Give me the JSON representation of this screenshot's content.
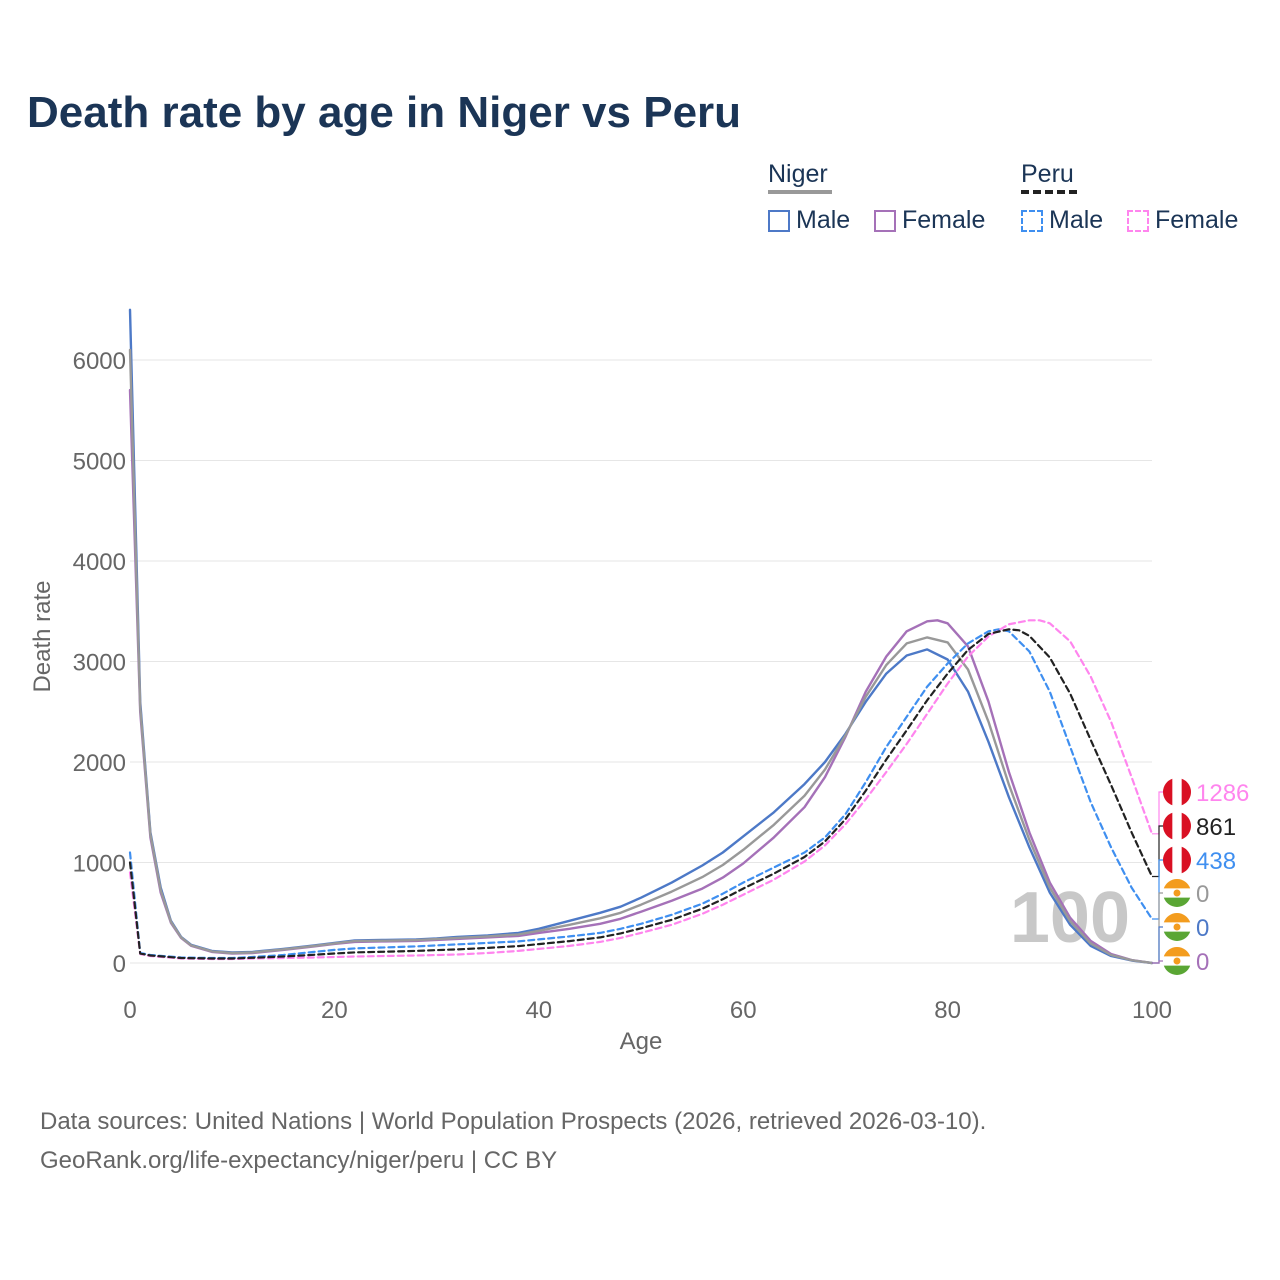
{
  "title": "Death rate by age in Niger vs Peru",
  "legend": {
    "niger": {
      "label": "Niger",
      "male": "Male",
      "female": "Female"
    },
    "peru": {
      "label": "Peru",
      "male": "Male",
      "female": "Female"
    }
  },
  "colors": {
    "title": "#1b3556",
    "niger_male": "#4d79c7",
    "niger_female": "#a571b8",
    "niger_total": "#999999",
    "peru_male": "#3f8ff0",
    "peru_female": "#ff85ee",
    "peru_total": "#222222",
    "grid": "#e6e6e6",
    "axis_text": "#666666"
  },
  "chart_data": {
    "type": "line",
    "title": "Death rate by age in Niger vs Peru",
    "xlabel": "Age",
    "ylabel": "Death rate",
    "xlim": [
      0,
      100
    ],
    "ylim": [
      0,
      6500
    ],
    "x_ticks": [
      0,
      20,
      40,
      60,
      80,
      100
    ],
    "y_ticks": [
      0,
      1000,
      2000,
      3000,
      4000,
      5000,
      6000
    ],
    "grid": true,
    "year_label": "100",
    "series": [
      {
        "name": "Niger Male",
        "color": "#4d79c7",
        "dash": false,
        "points": [
          [
            0,
            6500
          ],
          [
            1,
            2600
          ],
          [
            2,
            1300
          ],
          [
            3,
            750
          ],
          [
            4,
            420
          ],
          [
            5,
            260
          ],
          [
            6,
            180
          ],
          [
            8,
            120
          ],
          [
            10,
            105
          ],
          [
            12,
            110
          ],
          [
            15,
            140
          ],
          [
            18,
            175
          ],
          [
            20,
            200
          ],
          [
            22,
            225
          ],
          [
            25,
            230
          ],
          [
            28,
            235
          ],
          [
            30,
            245
          ],
          [
            32,
            260
          ],
          [
            35,
            275
          ],
          [
            38,
            300
          ],
          [
            40,
            340
          ],
          [
            43,
            420
          ],
          [
            46,
            500
          ],
          [
            48,
            560
          ],
          [
            50,
            650
          ],
          [
            53,
            800
          ],
          [
            56,
            970
          ],
          [
            58,
            1100
          ],
          [
            60,
            1260
          ],
          [
            63,
            1500
          ],
          [
            66,
            1780
          ],
          [
            68,
            2000
          ],
          [
            70,
            2280
          ],
          [
            72,
            2600
          ],
          [
            74,
            2880
          ],
          [
            76,
            3060
          ],
          [
            78,
            3120
          ],
          [
            80,
            3020
          ],
          [
            82,
            2700
          ],
          [
            84,
            2200
          ],
          [
            86,
            1650
          ],
          [
            88,
            1150
          ],
          [
            90,
            700
          ],
          [
            92,
            380
          ],
          [
            94,
            170
          ],
          [
            96,
            70
          ],
          [
            98,
            25
          ],
          [
            100,
            0
          ]
        ]
      },
      {
        "name": "Niger Female",
        "color": "#a571b8",
        "dash": false,
        "points": [
          [
            0,
            5700
          ],
          [
            1,
            2500
          ],
          [
            2,
            1250
          ],
          [
            3,
            700
          ],
          [
            4,
            400
          ],
          [
            5,
            250
          ],
          [
            6,
            170
          ],
          [
            8,
            110
          ],
          [
            10,
            95
          ],
          [
            12,
            100
          ],
          [
            15,
            130
          ],
          [
            18,
            165
          ],
          [
            20,
            190
          ],
          [
            22,
            210
          ],
          [
            25,
            215
          ],
          [
            28,
            220
          ],
          [
            30,
            230
          ],
          [
            32,
            240
          ],
          [
            35,
            255
          ],
          [
            38,
            270
          ],
          [
            40,
            300
          ],
          [
            43,
            340
          ],
          [
            46,
            390
          ],
          [
            48,
            440
          ],
          [
            50,
            510
          ],
          [
            53,
            620
          ],
          [
            56,
            740
          ],
          [
            58,
            850
          ],
          [
            60,
            990
          ],
          [
            63,
            1250
          ],
          [
            66,
            1550
          ],
          [
            68,
            1850
          ],
          [
            70,
            2250
          ],
          [
            72,
            2700
          ],
          [
            74,
            3050
          ],
          [
            76,
            3300
          ],
          [
            78,
            3400
          ],
          [
            79,
            3410
          ],
          [
            80,
            3380
          ],
          [
            82,
            3150
          ],
          [
            84,
            2600
          ],
          [
            86,
            1900
          ],
          [
            88,
            1300
          ],
          [
            90,
            800
          ],
          [
            92,
            450
          ],
          [
            94,
            220
          ],
          [
            96,
            90
          ],
          [
            98,
            30
          ],
          [
            100,
            0
          ]
        ]
      },
      {
        "name": "Niger Total",
        "color": "#999999",
        "dash": false,
        "points": [
          [
            0,
            6100
          ],
          [
            1,
            2550
          ],
          [
            2,
            1280
          ],
          [
            3,
            725
          ],
          [
            4,
            410
          ],
          [
            5,
            255
          ],
          [
            6,
            175
          ],
          [
            8,
            115
          ],
          [
            10,
            100
          ],
          [
            12,
            105
          ],
          [
            15,
            135
          ],
          [
            18,
            170
          ],
          [
            20,
            195
          ],
          [
            22,
            218
          ],
          [
            25,
            222
          ],
          [
            28,
            228
          ],
          [
            30,
            238
          ],
          [
            32,
            250
          ],
          [
            35,
            265
          ],
          [
            38,
            285
          ],
          [
            40,
            320
          ],
          [
            43,
            380
          ],
          [
            46,
            445
          ],
          [
            48,
            500
          ],
          [
            50,
            580
          ],
          [
            53,
            710
          ],
          [
            56,
            855
          ],
          [
            58,
            975
          ],
          [
            60,
            1125
          ],
          [
            63,
            1375
          ],
          [
            66,
            1665
          ],
          [
            68,
            1925
          ],
          [
            70,
            2265
          ],
          [
            72,
            2650
          ],
          [
            74,
            2965
          ],
          [
            76,
            3180
          ],
          [
            78,
            3240
          ],
          [
            80,
            3190
          ],
          [
            82,
            2920
          ],
          [
            84,
            2400
          ],
          [
            86,
            1775
          ],
          [
            88,
            1225
          ],
          [
            90,
            750
          ],
          [
            92,
            415
          ],
          [
            94,
            195
          ],
          [
            96,
            80
          ],
          [
            98,
            28
          ],
          [
            100,
            0
          ]
        ]
      },
      {
        "name": "Peru Male",
        "color": "#3f8ff0",
        "dash": true,
        "points": [
          [
            0,
            1100
          ],
          [
            1,
            100
          ],
          [
            2,
            80
          ],
          [
            5,
            55
          ],
          [
            8,
            50
          ],
          [
            10,
            50
          ],
          [
            12,
            60
          ],
          [
            15,
            80
          ],
          [
            18,
            110
          ],
          [
            20,
            130
          ],
          [
            22,
            145
          ],
          [
            25,
            155
          ],
          [
            28,
            165
          ],
          [
            30,
            175
          ],
          [
            32,
            185
          ],
          [
            35,
            200
          ],
          [
            38,
            215
          ],
          [
            40,
            235
          ],
          [
            43,
            265
          ],
          [
            46,
            300
          ],
          [
            48,
            340
          ],
          [
            50,
            390
          ],
          [
            53,
            480
          ],
          [
            56,
            590
          ],
          [
            58,
            690
          ],
          [
            60,
            800
          ],
          [
            63,
            950
          ],
          [
            66,
            1100
          ],
          [
            68,
            1250
          ],
          [
            70,
            1480
          ],
          [
            72,
            1800
          ],
          [
            74,
            2150
          ],
          [
            76,
            2450
          ],
          [
            78,
            2750
          ],
          [
            80,
            2980
          ],
          [
            82,
            3180
          ],
          [
            84,
            3300
          ],
          [
            85,
            3320
          ],
          [
            86,
            3300
          ],
          [
            88,
            3100
          ],
          [
            90,
            2700
          ],
          [
            92,
            2150
          ],
          [
            94,
            1600
          ],
          [
            96,
            1150
          ],
          [
            98,
            750
          ],
          [
            100,
            438
          ]
        ]
      },
      {
        "name": "Peru Female",
        "color": "#ff85ee",
        "dash": true,
        "points": [
          [
            0,
            900
          ],
          [
            1,
            90
          ],
          [
            2,
            70
          ],
          [
            5,
            45
          ],
          [
            8,
            40
          ],
          [
            10,
            40
          ],
          [
            12,
            45
          ],
          [
            15,
            50
          ],
          [
            18,
            55
          ],
          [
            20,
            60
          ],
          [
            22,
            65
          ],
          [
            25,
            70
          ],
          [
            28,
            75
          ],
          [
            30,
            80
          ],
          [
            32,
            85
          ],
          [
            35,
            100
          ],
          [
            38,
            120
          ],
          [
            40,
            140
          ],
          [
            43,
            170
          ],
          [
            46,
            210
          ],
          [
            48,
            250
          ],
          [
            50,
            300
          ],
          [
            53,
            380
          ],
          [
            56,
            490
          ],
          [
            58,
            580
          ],
          [
            60,
            680
          ],
          [
            63,
            830
          ],
          [
            66,
            1010
          ],
          [
            68,
            1170
          ],
          [
            70,
            1380
          ],
          [
            72,
            1630
          ],
          [
            74,
            1900
          ],
          [
            76,
            2180
          ],
          [
            78,
            2480
          ],
          [
            80,
            2780
          ],
          [
            82,
            3050
          ],
          [
            84,
            3250
          ],
          [
            86,
            3370
          ],
          [
            88,
            3410
          ],
          [
            89,
            3410
          ],
          [
            90,
            3380
          ],
          [
            92,
            3200
          ],
          [
            94,
            2850
          ],
          [
            96,
            2400
          ],
          [
            98,
            1850
          ],
          [
            100,
            1286
          ]
        ]
      },
      {
        "name": "Peru Total",
        "color": "#222222",
        "dash": true,
        "points": [
          [
            0,
            1000
          ],
          [
            1,
            95
          ],
          [
            2,
            75
          ],
          [
            5,
            50
          ],
          [
            8,
            45
          ],
          [
            10,
            45
          ],
          [
            12,
            52
          ],
          [
            15,
            65
          ],
          [
            18,
            82
          ],
          [
            20,
            95
          ],
          [
            22,
            105
          ],
          [
            25,
            112
          ],
          [
            28,
            120
          ],
          [
            30,
            128
          ],
          [
            32,
            135
          ],
          [
            35,
            150
          ],
          [
            38,
            168
          ],
          [
            40,
            188
          ],
          [
            43,
            218
          ],
          [
            46,
            255
          ],
          [
            48,
            295
          ],
          [
            50,
            345
          ],
          [
            53,
            430
          ],
          [
            56,
            540
          ],
          [
            58,
            635
          ],
          [
            60,
            740
          ],
          [
            63,
            890
          ],
          [
            66,
            1055
          ],
          [
            68,
            1210
          ],
          [
            70,
            1430
          ],
          [
            72,
            1715
          ],
          [
            74,
            2025
          ],
          [
            76,
            2315
          ],
          [
            78,
            2615
          ],
          [
            80,
            2880
          ],
          [
            82,
            3115
          ],
          [
            84,
            3275
          ],
          [
            86,
            3320
          ],
          [
            87,
            3310
          ],
          [
            88,
            3255
          ],
          [
            90,
            3040
          ],
          [
            92,
            2680
          ],
          [
            94,
            2220
          ],
          [
            96,
            1770
          ],
          [
            98,
            1300
          ],
          [
            100,
            861
          ]
        ]
      }
    ],
    "end_labels": [
      {
        "value": "1286",
        "color": "#ff85ee",
        "country": "Peru",
        "series": "Peru Female"
      },
      {
        "value": "861",
        "color": "#222222",
        "country": "Peru",
        "series": "Peru Total"
      },
      {
        "value": "438",
        "color": "#3f8ff0",
        "country": "Peru",
        "series": "Peru Male"
      },
      {
        "value": "0",
        "color": "#999999",
        "country": "Niger",
        "series": "Niger Total"
      },
      {
        "value": "0",
        "color": "#4d79c7",
        "country": "Niger",
        "series": "Niger Male"
      },
      {
        "value": "0",
        "color": "#a571b8",
        "country": "Niger",
        "series": "Niger Female"
      }
    ]
  },
  "footer": {
    "line1": "Data sources: United Nations | World Population Prospects (2026, retrieved 2026-03-10).",
    "line2": "GeoRank.org/life-expectancy/niger/peru | CC BY"
  }
}
